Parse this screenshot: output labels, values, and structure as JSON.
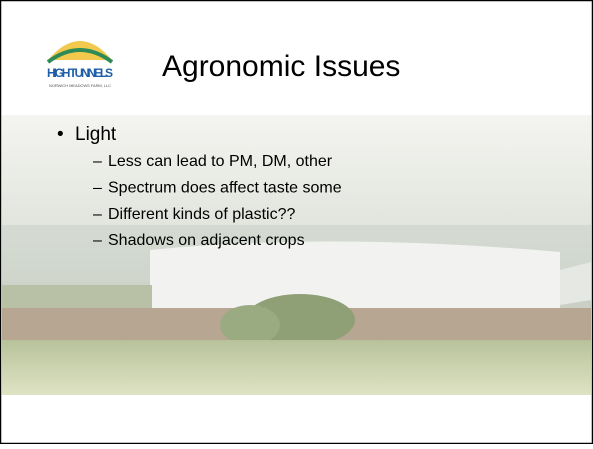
{
  "header": {
    "title": "Agronomic Issues"
  },
  "logo": {
    "name": "HIGH TUNNELS",
    "subtitle": "NORWICH MEADOWS FARM, LLC"
  },
  "bullets": [
    {
      "text": "Light",
      "items": [
        "Less can lead to PM, DM, other",
        "Spectrum does affect taste some",
        "Different kinds of plastic??",
        "Shadows on adjacent crops"
      ]
    }
  ]
}
